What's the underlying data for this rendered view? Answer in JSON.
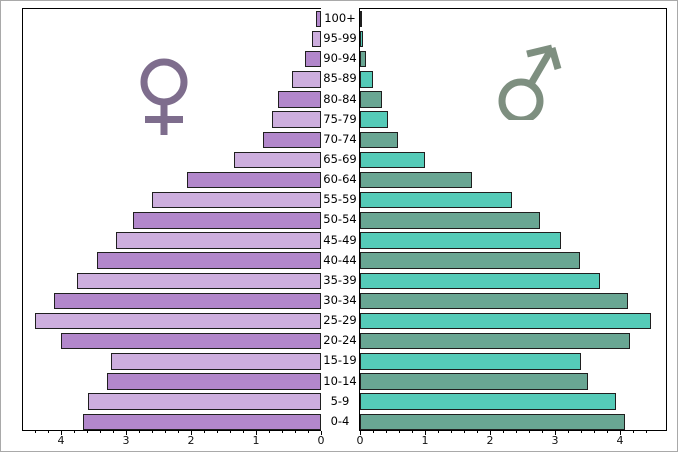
{
  "figure": {
    "background": "#ffffff",
    "frame_color": "#a9a9a9",
    "spine_color": "#000000"
  },
  "chart_data": {
    "type": "bar",
    "subtype": "population-pyramid",
    "title": "",
    "xlabel": "",
    "ylabel": "",
    "grid": false,
    "age_groups": [
      "0-4",
      "5-9",
      "10-14",
      "15-19",
      "20-24",
      "25-29",
      "30-34",
      "35-39",
      "40-44",
      "45-49",
      "50-54",
      "55-59",
      "60-64",
      "65-69",
      "70-74",
      "75-79",
      "80-84",
      "85-89",
      "90-94",
      "95-99",
      "100+"
    ],
    "series": [
      {
        "name": "female",
        "symbol": "female-sign",
        "side": "left",
        "color_dark": "#b287cb",
        "color_light": "#cdaede",
        "symbol_color": "#7e6d8d",
        "values": [
          3.66,
          3.58,
          3.29,
          3.23,
          4.0,
          4.4,
          4.11,
          3.75,
          3.45,
          3.15,
          2.89,
          2.6,
          2.06,
          1.34,
          0.89,
          0.75,
          0.66,
          0.45,
          0.25,
          0.14,
          0.07
        ]
      },
      {
        "name": "male",
        "symbol": "male-sign",
        "side": "right",
        "color_dark": "#69a693",
        "color_light": "#55cbb8",
        "symbol_color": "#7e8f80",
        "values": [
          4.08,
          3.94,
          3.51,
          3.4,
          4.15,
          4.48,
          4.12,
          3.69,
          3.38,
          3.09,
          2.77,
          2.34,
          1.72,
          1.0,
          0.58,
          0.43,
          0.34,
          0.2,
          0.09,
          0.05,
          0.02
        ]
      }
    ],
    "bar_edge_color": "#1f1f1f",
    "x_axis": {
      "left_tick_labels": [
        "4",
        "3",
        "2",
        "1",
        "0"
      ],
      "right_tick_labels": [
        "0",
        "1",
        "2",
        "3",
        "4"
      ],
      "xlim_left": [
        4.6,
        0
      ],
      "xlim_right": [
        0,
        4.7
      ],
      "minor_step": 0.2
    }
  }
}
